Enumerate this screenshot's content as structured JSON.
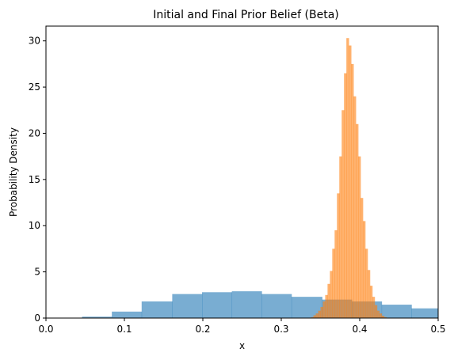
{
  "chart_data": {
    "type": "histogram",
    "title": "Initial and Final Prior Belief (Beta)",
    "xlabel": "x",
    "ylabel": "Probability Density",
    "xlim": [
      0,
      0.5
    ],
    "ylim": [
      0,
      31.6
    ],
    "grid": false,
    "legend": "none",
    "xticks": [
      {
        "value": 0.0,
        "label": "0.0"
      },
      {
        "value": 0.1,
        "label": "0.1"
      },
      {
        "value": 0.2,
        "label": "0.2"
      },
      {
        "value": 0.3,
        "label": "0.3"
      },
      {
        "value": 0.4,
        "label": "0.4"
      },
      {
        "value": 0.5,
        "label": "0.5"
      }
    ],
    "yticks": [
      {
        "value": 0,
        "label": "0"
      },
      {
        "value": 5,
        "label": "5"
      },
      {
        "value": 10,
        "label": "10"
      },
      {
        "value": 15,
        "label": "15"
      },
      {
        "value": 20,
        "label": "20"
      },
      {
        "value": 25,
        "label": "25"
      },
      {
        "value": 30,
        "label": "30"
      }
    ],
    "series": [
      {
        "color": "#1f77b4",
        "opacity": 0.6,
        "bins": [
          {
            "x0": 0.046,
            "x1": 0.084,
            "value": 0.15
          },
          {
            "x0": 0.084,
            "x1": 0.122,
            "value": 0.7
          },
          {
            "x0": 0.122,
            "x1": 0.161,
            "value": 1.8
          },
          {
            "x0": 0.161,
            "x1": 0.199,
            "value": 2.6
          },
          {
            "x0": 0.199,
            "x1": 0.237,
            "value": 2.8
          },
          {
            "x0": 0.237,
            "x1": 0.275,
            "value": 2.9
          },
          {
            "x0": 0.275,
            "x1": 0.313,
            "value": 2.6
          },
          {
            "x0": 0.313,
            "x1": 0.352,
            "value": 2.3
          },
          {
            "x0": 0.352,
            "x1": 0.39,
            "value": 2.0
          },
          {
            "x0": 0.39,
            "x1": 0.428,
            "value": 1.8
          },
          {
            "x0": 0.428,
            "x1": 0.466,
            "value": 1.45
          },
          {
            "x0": 0.466,
            "x1": 0.505,
            "value": 1.05
          }
        ]
      },
      {
        "color": "#ff7f0e",
        "opacity": 0.6,
        "bins": [
          {
            "x0": 0.338,
            "x1": 0.341,
            "value": 0.1
          },
          {
            "x0": 0.341,
            "x1": 0.344,
            "value": 0.3
          },
          {
            "x0": 0.344,
            "x1": 0.347,
            "value": 0.5
          },
          {
            "x0": 0.347,
            "x1": 0.35,
            "value": 0.8
          },
          {
            "x0": 0.35,
            "x1": 0.353,
            "value": 1.2
          },
          {
            "x0": 0.353,
            "x1": 0.356,
            "value": 1.8
          },
          {
            "x0": 0.356,
            "x1": 0.359,
            "value": 2.5
          },
          {
            "x0": 0.359,
            "x1": 0.362,
            "value": 3.7
          },
          {
            "x0": 0.362,
            "x1": 0.365,
            "value": 5.1
          },
          {
            "x0": 0.365,
            "x1": 0.368,
            "value": 7.5
          },
          {
            "x0": 0.368,
            "x1": 0.371,
            "value": 9.5
          },
          {
            "x0": 0.371,
            "x1": 0.374,
            "value": 13.5
          },
          {
            "x0": 0.374,
            "x1": 0.377,
            "value": 17.5
          },
          {
            "x0": 0.377,
            "x1": 0.38,
            "value": 22.5
          },
          {
            "x0": 0.38,
            "x1": 0.383,
            "value": 26.5
          },
          {
            "x0": 0.383,
            "x1": 0.386,
            "value": 30.3
          },
          {
            "x0": 0.386,
            "x1": 0.389,
            "value": 29.5
          },
          {
            "x0": 0.389,
            "x1": 0.392,
            "value": 27.5
          },
          {
            "x0": 0.392,
            "x1": 0.395,
            "value": 24.0
          },
          {
            "x0": 0.395,
            "x1": 0.398,
            "value": 21.0
          },
          {
            "x0": 0.398,
            "x1": 0.401,
            "value": 17.5
          },
          {
            "x0": 0.401,
            "x1": 0.404,
            "value": 13.0
          },
          {
            "x0": 0.404,
            "x1": 0.407,
            "value": 10.5
          },
          {
            "x0": 0.407,
            "x1": 0.41,
            "value": 7.5
          },
          {
            "x0": 0.41,
            "x1": 0.413,
            "value": 5.2
          },
          {
            "x0": 0.413,
            "x1": 0.416,
            "value": 3.5
          },
          {
            "x0": 0.416,
            "x1": 0.419,
            "value": 2.3
          },
          {
            "x0": 0.419,
            "x1": 0.422,
            "value": 1.4
          },
          {
            "x0": 0.422,
            "x1": 0.425,
            "value": 0.8
          },
          {
            "x0": 0.425,
            "x1": 0.428,
            "value": 0.5
          },
          {
            "x0": 0.428,
            "x1": 0.431,
            "value": 0.25
          },
          {
            "x0": 0.431,
            "x1": 0.434,
            "value": 0.1
          }
        ]
      }
    ]
  }
}
